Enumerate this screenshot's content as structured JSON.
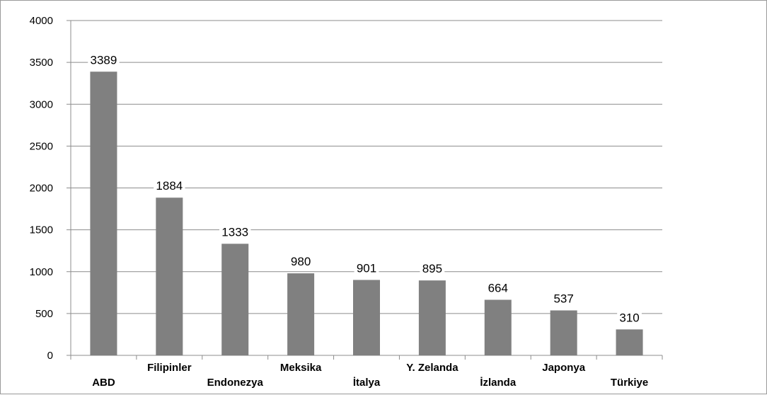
{
  "chart_data": {
    "type": "bar",
    "title": "",
    "xlabel": "",
    "ylabel": "",
    "categories": [
      "ABD",
      "Filipinler",
      "Endonezya",
      "Meksika",
      "İtalya",
      "Y. Zelanda",
      "İzlanda",
      "Japonya",
      "Türkiye"
    ],
    "values": [
      3389,
      1884,
      1333,
      980,
      901,
      895,
      664,
      537,
      310
    ],
    "data_labels": [
      "3389",
      "1884",
      "1333",
      "980",
      "901",
      "895",
      "664",
      "537",
      "310"
    ],
    "ylim": [
      0,
      4000
    ],
    "yticks": [
      0,
      500,
      1000,
      1500,
      2000,
      2500,
      3000,
      3500,
      4000
    ],
    "ytick_labels": [
      "0",
      "500",
      "1000",
      "1500",
      "2000",
      "2500",
      "3000",
      "3500",
      "4000"
    ],
    "grid": true,
    "legend": "none",
    "colors": {
      "bar": "#808080",
      "grid": "#8c8c8c",
      "axis": "#8c8c8c"
    }
  }
}
